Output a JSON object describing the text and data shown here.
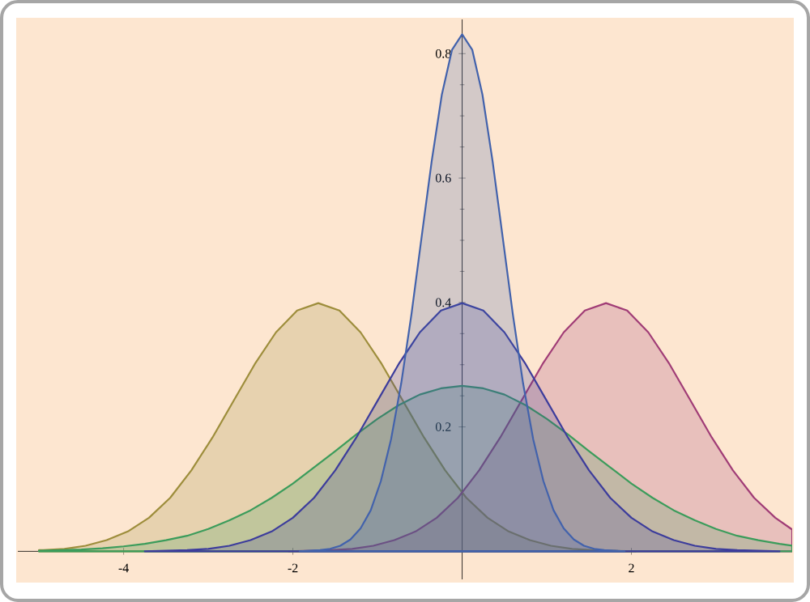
{
  "chart_data": {
    "type": "area",
    "xlim": [
      -5.25,
      3.9
    ],
    "ylim": [
      -0.045,
      0.855
    ],
    "xticks": [
      -4,
      -2,
      2
    ],
    "yticks": [
      0.2,
      0.4,
      0.6,
      0.8
    ],
    "grid": false,
    "marker": "none",
    "line_style": "solid",
    "series": [
      {
        "color": "#9d8d3b",
        "x": [
          -5,
          -4.95,
          -4.7,
          -4.45,
          -4.2,
          -3.95,
          -3.7,
          -3.45,
          -3.2,
          -2.95,
          -2.7,
          -2.45,
          -2.2,
          -1.95,
          -1.7,
          -1.45,
          -1.2,
          -0.95,
          -0.7,
          -0.45,
          -0.2,
          0.05,
          0.3,
          0.55,
          0.8,
          1.05,
          1.3,
          1.55,
          1.8,
          2.05
        ],
        "values": [
          0.002,
          0.002,
          0.004,
          0.009,
          0.018,
          0.032,
          0.054,
          0.086,
          0.13,
          0.183,
          0.242,
          0.301,
          0.352,
          0.387,
          0.399,
          0.387,
          0.352,
          0.301,
          0.242,
          0.183,
          0.13,
          0.086,
          0.054,
          0.032,
          0.018,
          0.009,
          0.004,
          0.002,
          0.001,
          0
        ]
      },
      {
        "color": "#a03c76",
        "x": [
          -2.05,
          -1.8,
          -1.55,
          -1.3,
          -1.05,
          -0.8,
          -0.55,
          -0.3,
          -0.05,
          0.2,
          0.45,
          0.7,
          0.95,
          1.2,
          1.45,
          1.7,
          1.95,
          2.2,
          2.45,
          2.7,
          2.95,
          3.2,
          3.45,
          3.7,
          3.9
        ],
        "values": [
          0,
          0.001,
          0.002,
          0.004,
          0.009,
          0.018,
          0.032,
          0.054,
          0.086,
          0.13,
          0.183,
          0.242,
          0.301,
          0.352,
          0.387,
          0.399,
          0.387,
          0.352,
          0.301,
          0.242,
          0.183,
          0.13,
          0.086,
          0.054,
          0.035
        ]
      },
      {
        "color": "#3b9c5b",
        "x": [
          -5,
          -4.75,
          -4.5,
          -4.25,
          -4,
          -3.75,
          -3.5,
          -3.25,
          -3,
          -2.75,
          -2.5,
          -2.25,
          -2,
          -1.75,
          -1.5,
          -1.25,
          -1,
          -0.75,
          -0.5,
          -0.25,
          0,
          0.25,
          0.5,
          0.75,
          1,
          1.25,
          1.5,
          1.75,
          2,
          2.25,
          2.5,
          2.75,
          3,
          3.25,
          3.5,
          3.75,
          3.9
        ],
        "values": [
          0.001,
          0.002,
          0.003,
          0.005,
          0.008,
          0.012,
          0.018,
          0.025,
          0.036,
          0.05,
          0.066,
          0.086,
          0.109,
          0.135,
          0.161,
          0.188,
          0.213,
          0.235,
          0.252,
          0.262,
          0.266,
          0.262,
          0.252,
          0.235,
          0.213,
          0.188,
          0.161,
          0.135,
          0.109,
          0.086,
          0.066,
          0.05,
          0.036,
          0.025,
          0.018,
          0.012,
          0.009
        ]
      },
      {
        "color": "#3c3c9c",
        "x": [
          -3.75,
          -3.5,
          -3.25,
          -3,
          -2.75,
          -2.5,
          -2.25,
          -2,
          -1.75,
          -1.5,
          -1.25,
          -1,
          -0.75,
          -0.5,
          -0.25,
          0,
          0.25,
          0.5,
          0.75,
          1,
          1.25,
          1.5,
          1.75,
          2,
          2.25,
          2.5,
          2.75,
          3,
          3.25,
          3.5,
          3.75
        ],
        "values": [
          0,
          0.001,
          0.002,
          0.004,
          0.009,
          0.018,
          0.032,
          0.054,
          0.086,
          0.13,
          0.183,
          0.242,
          0.301,
          0.352,
          0.387,
          0.399,
          0.387,
          0.352,
          0.301,
          0.242,
          0.183,
          0.13,
          0.086,
          0.054,
          0.032,
          0.018,
          0.009,
          0.004,
          0.002,
          0.001,
          0
        ]
      },
      {
        "color": "#4262ac",
        "x": [
          -1.92,
          -1.8,
          -1.68,
          -1.56,
          -1.44,
          -1.32,
          -1.2,
          -1.08,
          -0.96,
          -0.84,
          -0.72,
          -0.6,
          -0.48,
          -0.36,
          -0.24,
          -0.12,
          0,
          0.12,
          0.24,
          0.36,
          0.48,
          0.6,
          0.72,
          0.84,
          0.96,
          1.08,
          1.2,
          1.32,
          1.44,
          1.56,
          1.68,
          1.8,
          1.92
        ],
        "values": [
          0,
          0.001,
          0.002,
          0.004,
          0.009,
          0.019,
          0.037,
          0.066,
          0.113,
          0.18,
          0.27,
          0.38,
          0.504,
          0.627,
          0.734,
          0.806,
          0.831,
          0.806,
          0.734,
          0.627,
          0.504,
          0.38,
          0.27,
          0.18,
          0.113,
          0.066,
          0.037,
          0.019,
          0.009,
          0.004,
          0.002,
          0.001,
          0
        ]
      }
    ]
  }
}
